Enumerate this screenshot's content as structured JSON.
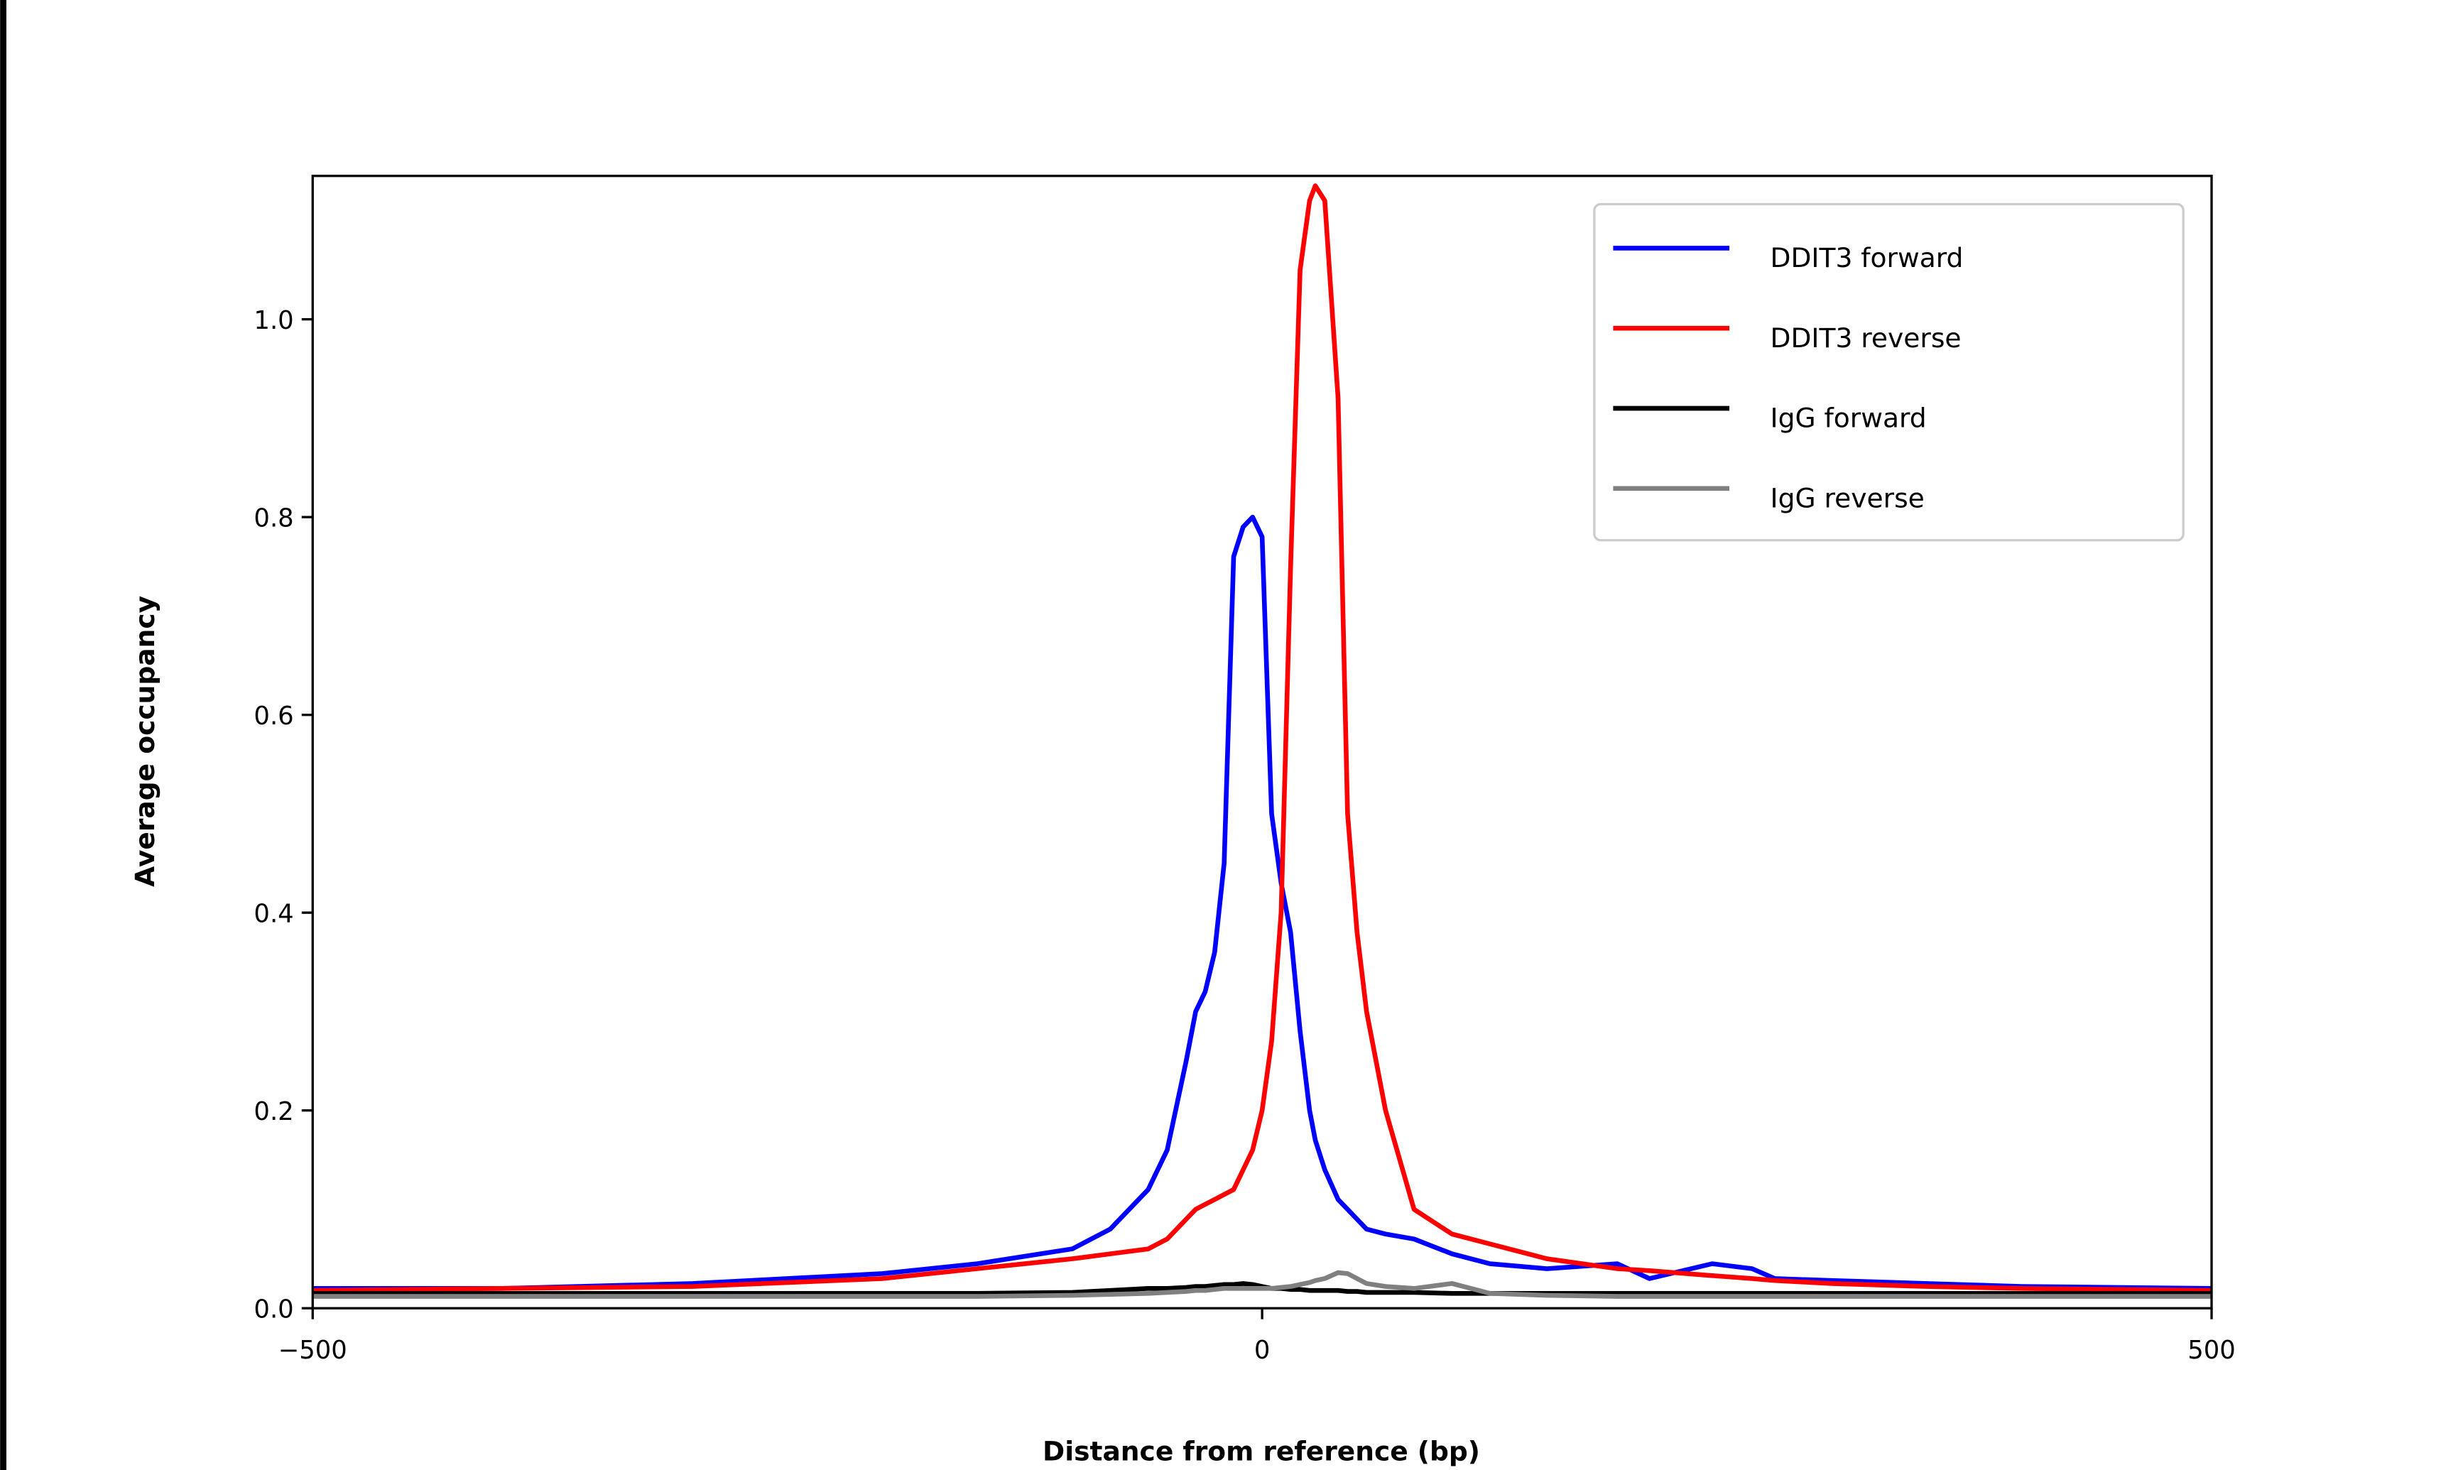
{
  "chart_data": {
    "type": "line",
    "xlabel": "Distance from reference (bp)",
    "ylabel": "Average occupancy",
    "x": [
      -500,
      -400,
      -300,
      -200,
      -150,
      -100,
      -80,
      -60,
      -50,
      -40,
      -35,
      -30,
      -25,
      -20,
      -15,
      -10,
      -5,
      0,
      5,
      10,
      15,
      20,
      25,
      28,
      33,
      40,
      45,
      50,
      55,
      65,
      80,
      100,
      120,
      150,
      187,
      204,
      237,
      258,
      270,
      300,
      350,
      400,
      500
    ],
    "series": [
      {
        "name": "DDIT3 forward",
        "color": "#0000ff",
        "values": [
          0.02,
          0.02,
          0.025,
          0.035,
          0.045,
          0.06,
          0.08,
          0.12,
          0.16,
          0.25,
          0.3,
          0.32,
          0.36,
          0.45,
          0.76,
          0.79,
          0.8,
          0.78,
          0.5,
          0.43,
          0.38,
          0.28,
          0.2,
          0.17,
          0.14,
          0.11,
          0.1,
          0.09,
          0.08,
          0.075,
          0.07,
          0.055,
          0.045,
          0.04,
          0.045,
          0.03,
          0.045,
          0.04,
          0.03,
          0.028,
          0.025,
          0.022,
          0.02
        ]
      },
      {
        "name": "DDIT3 reverse",
        "color": "#ff0000",
        "values": [
          0.018,
          0.02,
          0.022,
          0.03,
          0.04,
          0.05,
          0.055,
          0.06,
          0.07,
          0.09,
          0.1,
          0.105,
          0.11,
          0.115,
          0.12,
          0.14,
          0.16,
          0.2,
          0.27,
          0.4,
          0.75,
          1.05,
          1.12,
          1.135,
          1.12,
          0.92,
          0.5,
          0.38,
          0.3,
          0.2,
          0.1,
          0.075,
          0.065,
          0.05,
          0.04,
          0.038,
          0.033,
          0.03,
          0.028,
          0.025,
          0.022,
          0.02,
          0.018
        ]
      },
      {
        "name": "IgG forward",
        "color": "#000000",
        "values": [
          0.015,
          0.015,
          0.015,
          0.015,
          0.015,
          0.016,
          0.018,
          0.02,
          0.02,
          0.021,
          0.022,
          0.022,
          0.023,
          0.024,
          0.024,
          0.025,
          0.024,
          0.022,
          0.02,
          0.02,
          0.019,
          0.019,
          0.018,
          0.018,
          0.018,
          0.018,
          0.017,
          0.017,
          0.016,
          0.016,
          0.016,
          0.015,
          0.015,
          0.015,
          0.015,
          0.015,
          0.015,
          0.015,
          0.015,
          0.015,
          0.015,
          0.015,
          0.015
        ]
      },
      {
        "name": "IgG reverse",
        "color": "#808080",
        "values": [
          0.012,
          0.012,
          0.012,
          0.012,
          0.012,
          0.013,
          0.014,
          0.015,
          0.016,
          0.017,
          0.018,
          0.018,
          0.019,
          0.02,
          0.02,
          0.02,
          0.02,
          0.02,
          0.02,
          0.021,
          0.022,
          0.024,
          0.026,
          0.028,
          0.03,
          0.036,
          0.035,
          0.03,
          0.025,
          0.022,
          0.02,
          0.025,
          0.015,
          0.013,
          0.012,
          0.012,
          0.012,
          0.012,
          0.012,
          0.012,
          0.012,
          0.012,
          0.012
        ]
      }
    ],
    "xlim": [
      -500,
      500
    ],
    "xticks": [
      {
        "value": -500,
        "label": "−500"
      },
      0,
      500
    ],
    "ylim": [
      0,
      1.145
    ],
    "yticks": [
      {
        "value": 0,
        "label": "0.0"
      },
      0.2,
      0.4,
      0.6,
      0.8,
      {
        "value": 1,
        "label": "1.0"
      }
    ],
    "legend": "upper right"
  }
}
